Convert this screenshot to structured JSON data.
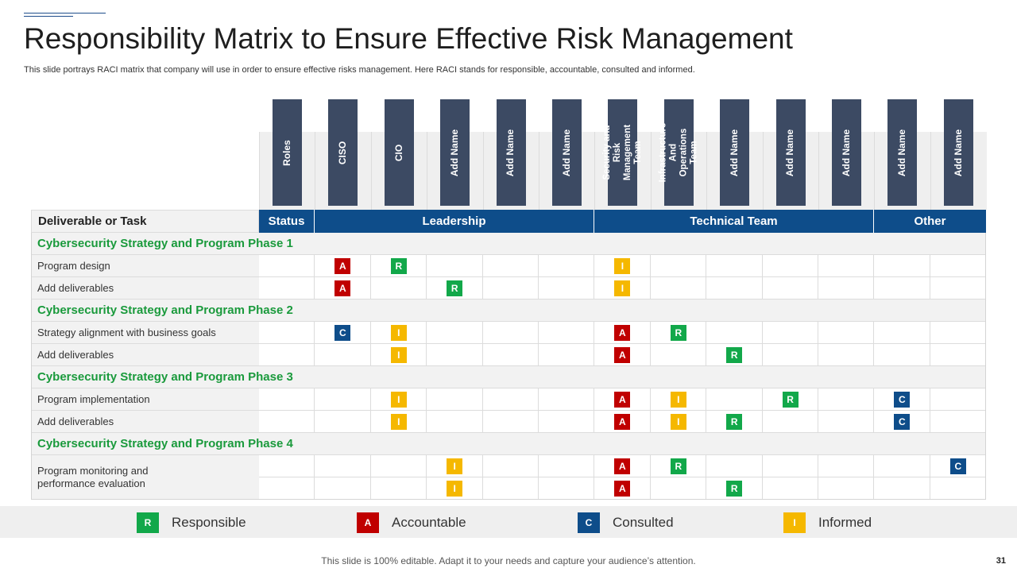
{
  "title": "Responsibility Matrix to Ensure Effective Risk Management",
  "subtitle": "This slide portrays RACI matrix that company will use in order to ensure effective risks management. Here RACI stands for responsible, accountable, consulted and informed.",
  "colors": {
    "header_dark": "#3c4a63",
    "header_blue": "#0e4d8a",
    "phase_green": "#1a9a3c",
    "R": "#12a84a",
    "A": "#c00000",
    "C": "#0e4d8a",
    "I": "#f5b800"
  },
  "roles": [
    "Roles",
    "CISO",
    "CIO",
    "Add Name",
    "Add Name",
    "Add Name",
    "Security and Risk Management Team",
    "Infrastructure And Operations Team",
    "Add Name",
    "Add Name",
    "Add Name",
    "Add Name",
    "Add Name"
  ],
  "header": {
    "task": "Deliverable or Task",
    "status": "Status",
    "leadership": "Leadership",
    "technical": "Technical Team",
    "other": "Other"
  },
  "phases": [
    {
      "title": "Cybersecurity Strategy and Program Phase 1",
      "tasks": [
        {
          "label": "Program  design",
          "marks": [
            null,
            "A",
            "R",
            null,
            null,
            null,
            "I",
            null,
            null,
            null,
            null,
            null,
            null
          ]
        },
        {
          "label": "Add deliverables",
          "marks": [
            null,
            "A",
            null,
            "R",
            null,
            null,
            "I",
            null,
            null,
            null,
            null,
            null,
            null
          ]
        }
      ]
    },
    {
      "title": "Cybersecurity Strategy and Program Phase 2",
      "tasks": [
        {
          "label": "Strategy alignment with business goals",
          "marks": [
            null,
            "C",
            "I",
            null,
            null,
            null,
            "A",
            "R",
            null,
            null,
            null,
            null,
            null
          ]
        },
        {
          "label": "Add deliverables",
          "marks": [
            null,
            null,
            "I",
            null,
            null,
            null,
            "A",
            null,
            "R",
            null,
            null,
            null,
            null
          ]
        }
      ]
    },
    {
      "title": "Cybersecurity Strategy and Program Phase 3",
      "tasks": [
        {
          "label": "Program  implementation",
          "marks": [
            null,
            null,
            "I",
            null,
            null,
            null,
            "A",
            "I",
            null,
            "R",
            null,
            "C",
            null
          ]
        },
        {
          "label": "Add deliverables",
          "marks": [
            null,
            null,
            "I",
            null,
            null,
            null,
            "A",
            "I",
            "R",
            null,
            null,
            "C",
            null
          ]
        }
      ]
    },
    {
      "title": "Cybersecurity Strategy and Program Phase 4",
      "tasks": [
        {
          "label": "Program  monitoring and performance  evaluation",
          "marks": [
            null,
            null,
            null,
            "I",
            null,
            null,
            "A",
            "R",
            null,
            null,
            null,
            null,
            "C"
          ],
          "marks2": [
            null,
            null,
            null,
            "I",
            null,
            null,
            "A",
            null,
            "R",
            null,
            null,
            null,
            null
          ]
        }
      ]
    }
  ],
  "legend": [
    {
      "letter": "R",
      "label": "Responsible"
    },
    {
      "letter": "A",
      "label": "Accountable"
    },
    {
      "letter": "C",
      "label": "Consulted"
    },
    {
      "letter": "I",
      "label": "Informed"
    }
  ],
  "footer": "This slide is 100% editable. Adapt it to your needs and capture your audience’s attention.",
  "page_number": "31"
}
